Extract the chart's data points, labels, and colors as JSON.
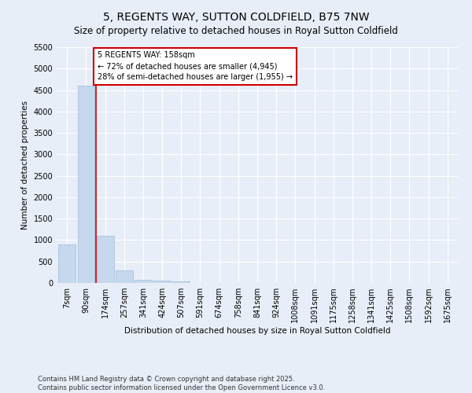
{
  "title": "5, REGENTS WAY, SUTTON COLDFIELD, B75 7NW",
  "subtitle": "Size of property relative to detached houses in Royal Sutton Coldfield",
  "xlabel": "Distribution of detached houses by size in Royal Sutton Coldfield",
  "ylabel": "Number of detached properties",
  "categories": [
    "7sqm",
    "90sqm",
    "174sqm",
    "257sqm",
    "341sqm",
    "424sqm",
    "507sqm",
    "591sqm",
    "674sqm",
    "758sqm",
    "841sqm",
    "924sqm",
    "1008sqm",
    "1091sqm",
    "1175sqm",
    "1258sqm",
    "1341sqm",
    "1425sqm",
    "1508sqm",
    "1592sqm",
    "1675sqm"
  ],
  "values": [
    900,
    4600,
    1100,
    300,
    80,
    50,
    30,
    0,
    0,
    0,
    0,
    0,
    0,
    0,
    0,
    0,
    0,
    0,
    0,
    0,
    0
  ],
  "bar_color": "#c5d8ee",
  "bar_edgecolor": "#a0bcd8",
  "vline_x": 1.5,
  "vline_color": "#cc0000",
  "annotation_text": "5 REGENTS WAY: 158sqm\n← 72% of detached houses are smaller (4,945)\n28% of semi-detached houses are larger (1,955) →",
  "annotation_box_color": "#cc0000",
  "ylim": [
    0,
    5500
  ],
  "yticks": [
    0,
    500,
    1000,
    1500,
    2000,
    2500,
    3000,
    3500,
    4000,
    4500,
    5000,
    5500
  ],
  "bg_color": "#e8eef7",
  "fig_bg_color": "#e8eef7",
  "footer_text": "Contains HM Land Registry data © Crown copyright and database right 2025.\nContains public sector information licensed under the Open Government Licence v3.0.",
  "title_fontsize": 10,
  "subtitle_fontsize": 8.5,
  "axis_label_fontsize": 7.5,
  "tick_fontsize": 7,
  "footer_fontsize": 6,
  "annotation_fontsize": 7
}
